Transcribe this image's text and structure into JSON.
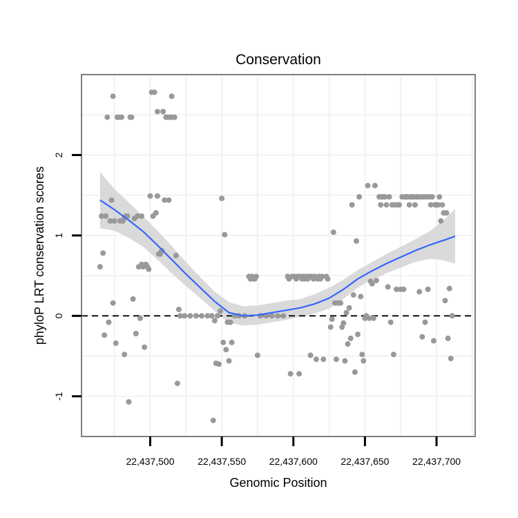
{
  "chart_data": {
    "type": "scatter",
    "title": "Conservation",
    "xlabel": "Genomic Position",
    "ylabel": "phyloP LRT conservation scores",
    "xlim": [
      22437452,
      22437727
    ],
    "ylim": [
      -1.5,
      3.0
    ],
    "x_ticks": [
      22437500,
      22437550,
      22437600,
      22437650,
      22437700
    ],
    "x_tick_labels": [
      "22,437,500",
      "22,437,550",
      "22,437,600",
      "22,437,650",
      "22,437,700"
    ],
    "y_ticks": [
      -1,
      0,
      1,
      2
    ],
    "y_tick_labels": [
      "-1",
      "0",
      "1",
      "2"
    ],
    "reference_line": {
      "y": 0,
      "style": "dashed"
    },
    "grid": true,
    "colors": {
      "points": "#999999",
      "smooth": "#3366ff",
      "ribbon": "#d3d3d3",
      "frame": "#7f7f7f",
      "grid": "#f2f2f2",
      "refline": "#000000"
    },
    "series": [
      {
        "name": "scores",
        "points": [
          [
            22437465,
            0.61
          ],
          [
            22437466,
            1.24
          ],
          [
            22437467,
            0.78
          ],
          [
            22437468,
            -0.24
          ],
          [
            22437469,
            1.24
          ],
          [
            22437470,
            2.47
          ],
          [
            22437471,
            -0.08
          ],
          [
            22437472,
            1.18
          ],
          [
            22437473,
            1.44
          ],
          [
            22437474,
            0.16
          ],
          [
            22437474,
            2.73
          ],
          [
            22437475,
            1.18
          ],
          [
            22437476,
            -0.34
          ],
          [
            22437477,
            2.47
          ],
          [
            22437478,
            2.47
          ],
          [
            22437479,
            1.18
          ],
          [
            22437480,
            2.47
          ],
          [
            22437481,
            1.18
          ],
          [
            22437482,
            1.22
          ],
          [
            22437482,
            -0.48
          ],
          [
            22437483,
            1.24
          ],
          [
            22437484,
            1.24
          ],
          [
            22437485,
            -1.07
          ],
          [
            22437486,
            2.47
          ],
          [
            22437487,
            2.47
          ],
          [
            22437488,
            0.21
          ],
          [
            22437489,
            1.21
          ],
          [
            22437490,
            -0.22
          ],
          [
            22437491,
            1.24
          ],
          [
            22437492,
            0.61
          ],
          [
            22437493,
            -0.03
          ],
          [
            22437494,
            1.24
          ],
          [
            22437494,
            0.64
          ],
          [
            22437495,
            0.61
          ],
          [
            22437496,
            -0.39
          ],
          [
            22437497,
            0.64
          ],
          [
            22437498,
            0.61
          ],
          [
            22437499,
            0.58
          ],
          [
            22437500,
            1.49
          ],
          [
            22437501,
            2.78
          ],
          [
            22437502,
            1.24
          ],
          [
            22437503,
            2.78
          ],
          [
            22437504,
            1.28
          ],
          [
            22437505,
            1.49
          ],
          [
            22437505,
            2.54
          ],
          [
            22437506,
            0.77
          ],
          [
            22437507,
            0.77
          ],
          [
            22437508,
            0.81
          ],
          [
            22437509,
            2.54
          ],
          [
            22437510,
            1.44
          ],
          [
            22437511,
            2.47
          ],
          [
            22437512,
            2.47
          ],
          [
            22437513,
            1.44
          ],
          [
            22437514,
            2.47
          ],
          [
            22437515,
            2.73
          ],
          [
            22437515,
            2.47
          ],
          [
            22437517,
            2.47
          ],
          [
            22437518,
            0.75
          ],
          [
            22437519,
            -0.84
          ],
          [
            22437520,
            0.08
          ],
          [
            22437521,
            0.0
          ],
          [
            22437524,
            0.0
          ],
          [
            22437528,
            0.0
          ],
          [
            22437532,
            0.0
          ],
          [
            22437536,
            0.0
          ],
          [
            22437540,
            0.0
          ],
          [
            22437543,
            0.0
          ],
          [
            22437544,
            -1.3
          ],
          [
            22437545,
            -0.06
          ],
          [
            22437546,
            -0.59
          ],
          [
            22437547,
            0.0
          ],
          [
            22437548,
            -0.6
          ],
          [
            22437549,
            0.06
          ],
          [
            22437550,
            1.46
          ],
          [
            22437551,
            -0.33
          ],
          [
            22437552,
            1.01
          ],
          [
            22437553,
            -0.42
          ],
          [
            22437554,
            -0.08
          ],
          [
            22437555,
            -0.56
          ],
          [
            22437556,
            -0.08
          ],
          [
            22437557,
            -0.33
          ],
          [
            22437559,
            0.0
          ],
          [
            22437562,
            0.0
          ],
          [
            22437566,
            0.0
          ],
          [
            22437569,
            0.49
          ],
          [
            22437570,
            0.46
          ],
          [
            22437571,
            0.49
          ],
          [
            22437572,
            0.46
          ],
          [
            22437573,
            0.46
          ],
          [
            22437574,
            0.49
          ],
          [
            22437575,
            -0.49
          ],
          [
            22437577,
            0.0
          ],
          [
            22437581,
            0.0
          ],
          [
            22437585,
            0.0
          ],
          [
            22437589,
            0.0
          ],
          [
            22437593,
            0.0
          ],
          [
            22437596,
            0.49
          ],
          [
            22437597,
            0.46
          ],
          [
            22437598,
            -0.72
          ],
          [
            22437599,
            0.49
          ],
          [
            22437601,
            0.49
          ],
          [
            22437602,
            0.46
          ],
          [
            22437603,
            0.49
          ],
          [
            22437604,
            -0.72
          ],
          [
            22437605,
            0.49
          ],
          [
            22437606,
            0.46
          ],
          [
            22437607,
            0.49
          ],
          [
            22437608,
            0.46
          ],
          [
            22437609,
            0.49
          ],
          [
            22437610,
            0.46
          ],
          [
            22437611,
            0.49
          ],
          [
            22437612,
            -0.49
          ],
          [
            22437613,
            0.49
          ],
          [
            22437614,
            0.46
          ],
          [
            22437615,
            0.49
          ],
          [
            22437616,
            -0.54
          ],
          [
            22437617,
            0.46
          ],
          [
            22437618,
            0.49
          ],
          [
            22437619,
            0.46
          ],
          [
            22437620,
            0.49
          ],
          [
            22437621,
            -0.54
          ],
          [
            22437623,
            0.49
          ],
          [
            22437624,
            0.46
          ],
          [
            22437626,
            -0.14
          ],
          [
            22437627,
            -0.04
          ],
          [
            22437628,
            1.04
          ],
          [
            22437629,
            0.16
          ],
          [
            22437630,
            -0.54
          ],
          [
            22437631,
            0.16
          ],
          [
            22437632,
            0.16
          ],
          [
            22437633,
            0.16
          ],
          [
            22437634,
            -0.14
          ],
          [
            22437635,
            -0.09
          ],
          [
            22437636,
            -0.56
          ],
          [
            22437637,
            0.04
          ],
          [
            22437638,
            -0.35
          ],
          [
            22437639,
            0.1
          ],
          [
            22437640,
            -0.28
          ],
          [
            22437641,
            1.38
          ],
          [
            22437642,
            0.26
          ],
          [
            22437643,
            -0.7
          ],
          [
            22437644,
            0.93
          ],
          [
            22437645,
            -0.23
          ],
          [
            22437646,
            1.48
          ],
          [
            22437647,
            0.24
          ],
          [
            22437648,
            -0.48
          ],
          [
            22437649,
            -0.56
          ],
          [
            22437650,
            -0.03
          ],
          [
            22437651,
            0.0
          ],
          [
            22437652,
            1.62
          ],
          [
            22437653,
            -0.03
          ],
          [
            22437654,
            0.43
          ],
          [
            22437655,
            0.4
          ],
          [
            22437656,
            -0.03
          ],
          [
            22437657,
            1.62
          ],
          [
            22437658,
            0.44
          ],
          [
            22437660,
            1.48
          ],
          [
            22437661,
            1.38
          ],
          [
            22437662,
            1.48
          ],
          [
            22437663,
            1.48
          ],
          [
            22437664,
            1.48
          ],
          [
            22437665,
            1.38
          ],
          [
            22437666,
            0.36
          ],
          [
            22437667,
            1.48
          ],
          [
            22437668,
            -0.08
          ],
          [
            22437669,
            1.38
          ],
          [
            22437670,
            -0.48
          ],
          [
            22437671,
            1.38
          ],
          [
            22437672,
            0.33
          ],
          [
            22437673,
            1.38
          ],
          [
            22437674,
            1.38
          ],
          [
            22437675,
            0.33
          ],
          [
            22437676,
            1.48
          ],
          [
            22437677,
            0.33
          ],
          [
            22437678,
            1.48
          ],
          [
            22437679,
            1.48
          ],
          [
            22437680,
            1.48
          ],
          [
            22437681,
            1.38
          ],
          [
            22437682,
            1.48
          ],
          [
            22437683,
            1.48
          ],
          [
            22437684,
            1.48
          ],
          [
            22437685,
            1.38
          ],
          [
            22437686,
            1.48
          ],
          [
            22437687,
            1.48
          ],
          [
            22437688,
            0.3
          ],
          [
            22437689,
            1.48
          ],
          [
            22437690,
            -0.26
          ],
          [
            22437691,
            1.48
          ],
          [
            22437692,
            -0.08
          ],
          [
            22437693,
            1.48
          ],
          [
            22437694,
            0.33
          ],
          [
            22437695,
            1.48
          ],
          [
            22437696,
            1.38
          ],
          [
            22437697,
            1.48
          ],
          [
            22437698,
            -0.31
          ],
          [
            22437699,
            1.38
          ],
          [
            22437700,
            1.38
          ],
          [
            22437701,
            1.38
          ],
          [
            22437702,
            1.48
          ],
          [
            22437703,
            1.18
          ],
          [
            22437704,
            1.38
          ],
          [
            22437705,
            1.28
          ],
          [
            22437706,
            0.19
          ],
          [
            22437707,
            1.28
          ],
          [
            22437708,
            -0.28
          ],
          [
            22437709,
            0.34
          ],
          [
            22437710,
            -0.53
          ],
          [
            22437711,
            0.0
          ]
        ]
      },
      {
        "name": "loess smooth",
        "x": [
          22437465,
          22437475,
          22437485,
          22437495,
          22437505,
          22437515,
          22437525,
          22437535,
          22437545,
          22437555,
          22437565,
          22437575,
          22437585,
          22437595,
          22437605,
          22437615,
          22437625,
          22437635,
          22437645,
          22437655,
          22437665,
          22437675,
          22437685,
          22437695,
          22437705,
          22437713
        ],
        "y": [
          1.44,
          1.32,
          1.19,
          1.05,
          0.88,
          0.7,
          0.52,
          0.35,
          0.18,
          0.04,
          0.0,
          0.01,
          0.04,
          0.07,
          0.1,
          0.15,
          0.22,
          0.33,
          0.46,
          0.56,
          0.65,
          0.73,
          0.81,
          0.88,
          0.94,
          0.99
        ],
        "ci_lower": [
          1.09,
          1.06,
          0.97,
          0.86,
          0.7,
          0.53,
          0.37,
          0.22,
          0.06,
          -0.09,
          -0.12,
          -0.11,
          -0.08,
          -0.05,
          -0.01,
          0.03,
          0.09,
          0.21,
          0.35,
          0.45,
          0.53,
          0.6,
          0.67,
          0.71,
          0.69,
          0.65
        ],
        "ci_upper": [
          1.79,
          1.58,
          1.41,
          1.24,
          1.06,
          0.87,
          0.67,
          0.48,
          0.3,
          0.17,
          0.12,
          0.13,
          0.16,
          0.19,
          0.21,
          0.27,
          0.35,
          0.45,
          0.57,
          0.67,
          0.77,
          0.86,
          0.95,
          1.05,
          1.19,
          1.33
        ]
      }
    ]
  }
}
